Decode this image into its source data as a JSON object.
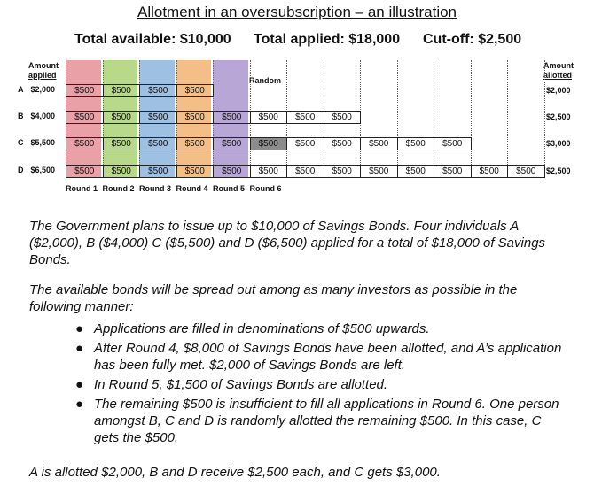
{
  "title": "Allotment in an oversubscription – an illustration",
  "totals": {
    "available": "Total available: $10,000",
    "applied": "Total applied: $18,000",
    "cutoff": "Cut-off: $2,500"
  },
  "chart": {
    "left_header": [
      "Amount",
      "applied"
    ],
    "right_header": [
      "Amount",
      "allotted"
    ],
    "random_label": "Random",
    "band_colors": [
      "#e9a0a6",
      "#b8d98a",
      "#9ec0e2",
      "#f4bf86",
      "#b7a6d6"
    ],
    "rounds": [
      "Round 1",
      "Round 2",
      "Round 3",
      "Round 4",
      "Round 5",
      "Round 6"
    ],
    "rows": [
      {
        "id": "A",
        "applied": "$2,000",
        "allotted": "$2,000",
        "cells": [
          "$500",
          "$500",
          "$500",
          "$500"
        ],
        "gray_index": -1
      },
      {
        "id": "B",
        "applied": "$4,000",
        "allotted": "$2,500",
        "cells": [
          "$500",
          "$500",
          "$500",
          "$500",
          "$500",
          "$500",
          "$500",
          "$500"
        ],
        "gray_index": -1
      },
      {
        "id": "C",
        "applied": "$5,500",
        "allotted": "$3,000",
        "cells": [
          "$500",
          "$500",
          "$500",
          "$500",
          "$500",
          "$500",
          "$500",
          "$500",
          "$500",
          "$500",
          "$500"
        ],
        "gray_index": 5
      },
      {
        "id": "D",
        "applied": "$6,500",
        "allotted": "$2,500",
        "cells": [
          "$500",
          "$500",
          "$500",
          "$500",
          "$500",
          "$500",
          "$500",
          "$500",
          "$500",
          "$500",
          "$500",
          "$500",
          "$500"
        ],
        "gray_index": -1
      }
    ]
  },
  "paragraph1": "The Government plans to issue up to $10,000 of Savings Bonds. Four individuals A ($2,000), B ($4,000) C ($5,500) and D ($6,500) applied for a total of $18,000 of Savings Bonds.",
  "paragraph2": "The available bonds will be spread out among as many investors as possible in the following manner:",
  "bullets": [
    "Applications are filled in denominations of $500 upwards.",
    "After Round 4, $8,000 of Savings Bonds have been allotted, and A’s application has been fully met. $2,000 of Savings Bonds are left.",
    "In Round 5, $1,500 of Savings Bonds are allotted.",
    "The remaining $500 is insufficient to fill all applications in Round 6. One person amongst B, C and D is randomly allotted the remaining $500. In this case, C gets the $500."
  ],
  "conclusion": "A is allotted $2,000, B and D receive $2,500 each, and C gets $3,000."
}
